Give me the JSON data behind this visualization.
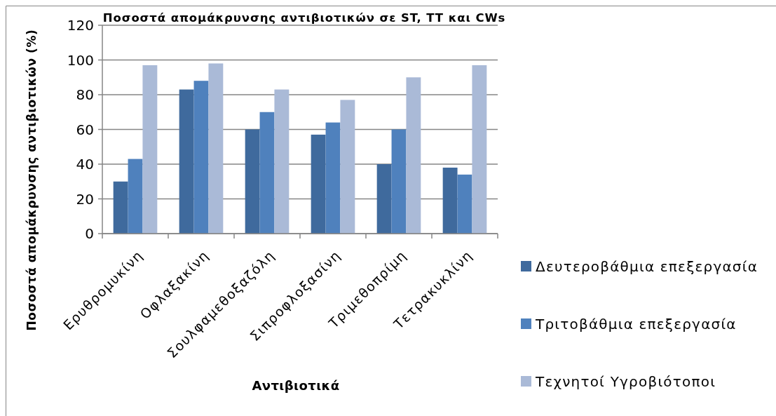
{
  "chart_data": {
    "type": "bar",
    "title": "Ποσοστά απομάκρυνσης αντιβιοτικών σε ST, TT  και CWs",
    "xlabel": "Αντιβιοτικά",
    "ylabel": "Ποσοστά απομάκρυνσης αντιβιοτικών (%)",
    "categories": [
      "Ερυθρομυκίνη",
      "Οφλαξακίνη",
      "Σουλφαμεθοξαζόλη",
      "Σιπροφλοξασίνη",
      "Τριμεθοπρίμη",
      "Τετρακυκλίνη"
    ],
    "series": [
      {
        "name": "Δευτεροβάθμια επεξεργασία",
        "color": "#3f6a9d",
        "values": [
          30,
          83,
          60,
          57,
          40,
          38
        ]
      },
      {
        "name": "Τριτοβάθμια επεξεργασία",
        "color": "#4f81bd",
        "values": [
          43,
          88,
          70,
          64,
          60,
          34
        ]
      },
      {
        "name": "Τεχνητοί Υγροβιότοποι",
        "color": "#aabad7",
        "values": [
          97,
          98,
          83,
          77,
          90,
          97
        ]
      }
    ],
    "ylim": [
      0,
      120
    ],
    "yticks": [
      0,
      20,
      40,
      60,
      80,
      100,
      120
    ],
    "grid": "y",
    "legend": "right"
  }
}
